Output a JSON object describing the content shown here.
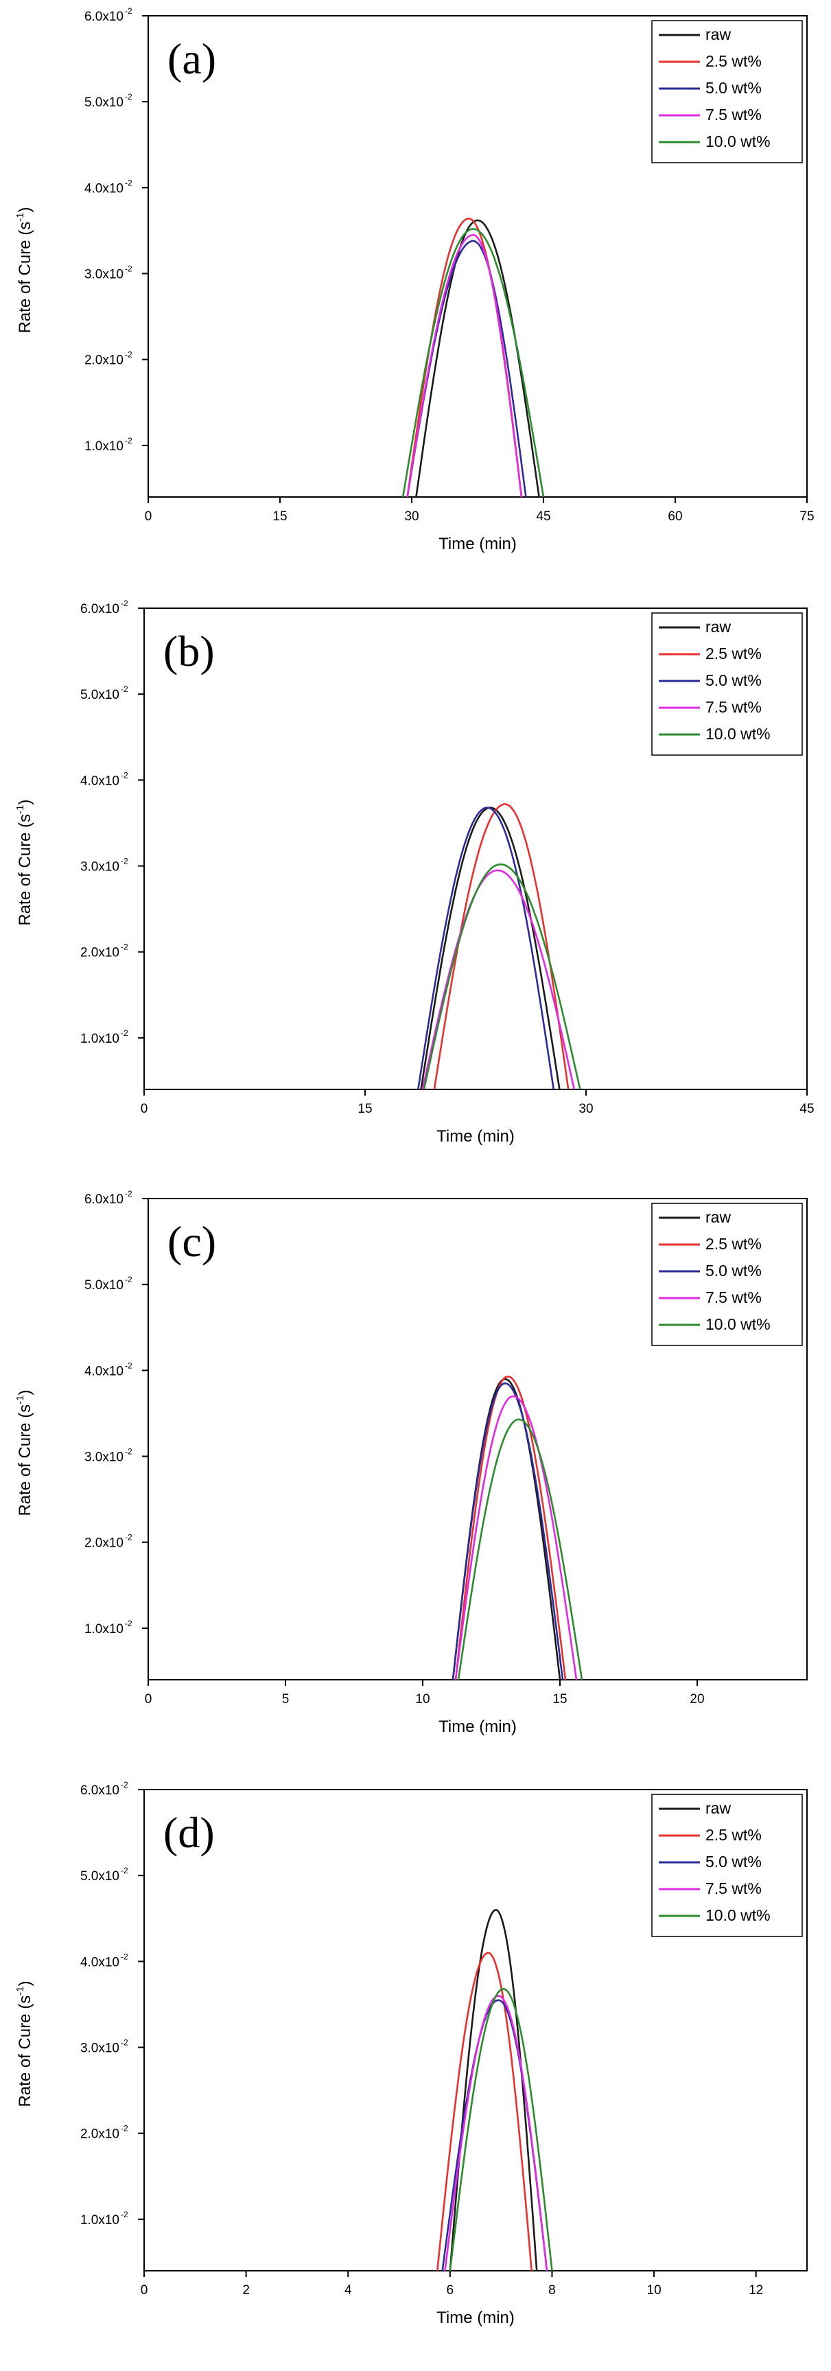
{
  "chart_data": [
    {
      "type": "line",
      "panel_label": "(a)",
      "xlabel": "Time (min)",
      "ylabel": "Rate of Cure (s",
      "ylabel_exp": "-1",
      "ylabel_suffix": ")",
      "xlim": [
        0,
        75
      ],
      "ylim": [
        0.004,
        0.06
      ],
      "xticks": [
        0,
        15,
        30,
        45,
        60,
        75
      ],
      "yticks": [
        {
          "value": 0.01,
          "mantissa": "1.0x10",
          "exp": "-2"
        },
        {
          "value": 0.02,
          "mantissa": "2.0x10",
          "exp": "-2"
        },
        {
          "value": 0.03,
          "mantissa": "3.0x10",
          "exp": "-2"
        },
        {
          "value": 0.04,
          "mantissa": "4.0x10",
          "exp": "-2"
        },
        {
          "value": 0.05,
          "mantissa": "5.0x10",
          "exp": "-2"
        },
        {
          "value": 0.06,
          "mantissa": "6.0x10",
          "exp": "-2"
        }
      ],
      "legend_position": "top-right",
      "series": [
        {
          "name": "raw",
          "color": "#1a1a1a",
          "start": 30.5,
          "peak_x": 37.5,
          "peak_y": 0.0362,
          "end": 44.5
        },
        {
          "name": "2.5 wt%",
          "color": "#e8322e",
          "start": 29.5,
          "peak_x": 36.5,
          "peak_y": 0.0364,
          "end": 42.5
        },
        {
          "name": "5.0 wt%",
          "color": "#2b2b9a",
          "start": 29.5,
          "peak_x": 37.0,
          "peak_y": 0.0338,
          "end": 43.0
        },
        {
          "name": "7.5 wt%",
          "color": "#e22ae2",
          "start": 29.5,
          "peak_x": 37.0,
          "peak_y": 0.0345,
          "end": 42.5
        },
        {
          "name": "10.0 wt%",
          "color": "#2d8a2d",
          "start": 29.0,
          "peak_x": 37.0,
          "peak_y": 0.0352,
          "end": 45.0
        }
      ]
    },
    {
      "type": "line",
      "panel_label": "(b)",
      "xlabel": "Time (min)",
      "ylabel": "Rate of Cure (s",
      "ylabel_exp": "-1",
      "ylabel_suffix": ")",
      "xlim": [
        0,
        45
      ],
      "ylim": [
        0.004,
        0.06
      ],
      "xticks": [
        0,
        15,
        30,
        45
      ],
      "yticks": [
        {
          "value": 0.01,
          "mantissa": "1.0x10",
          "exp": "-2"
        },
        {
          "value": 0.02,
          "mantissa": "2.0x10",
          "exp": "-2"
        },
        {
          "value": 0.03,
          "mantissa": "3.0x10",
          "exp": "-2"
        },
        {
          "value": 0.04,
          "mantissa": "4.0x10",
          "exp": "-2"
        },
        {
          "value": 0.05,
          "mantissa": "5.0x10",
          "exp": "-2"
        },
        {
          "value": 0.06,
          "mantissa": "6.0x10",
          "exp": "-2"
        }
      ],
      "legend_position": "top-right",
      "series": [
        {
          "name": "raw",
          "color": "#1a1a1a",
          "start": 18.8,
          "peak_x": 23.5,
          "peak_y": 0.0368,
          "end": 28.2
        },
        {
          "name": "2.5 wt%",
          "color": "#e8322e",
          "start": 19.7,
          "peak_x": 24.5,
          "peak_y": 0.0372,
          "end": 28.8
        },
        {
          "name": "5.0 wt%",
          "color": "#2b2b9a",
          "start": 18.6,
          "peak_x": 23.3,
          "peak_y": 0.0368,
          "end": 27.8
        },
        {
          "name": "7.5 wt%",
          "color": "#e22ae2",
          "start": 18.9,
          "peak_x": 24.0,
          "peak_y": 0.0295,
          "end": 29.2
        },
        {
          "name": "10.0 wt%",
          "color": "#2d8a2d",
          "start": 19.0,
          "peak_x": 24.2,
          "peak_y": 0.0302,
          "end": 29.6
        }
      ]
    },
    {
      "type": "line",
      "panel_label": "(c)",
      "xlabel": "Time (min)",
      "ylabel": "Rate of Cure (s",
      "ylabel_exp": "-1",
      "ylabel_suffix": ")",
      "xlim": [
        0,
        24
      ],
      "ylim": [
        0.004,
        0.06
      ],
      "xticks": [
        0,
        5,
        10,
        15,
        20
      ],
      "yticks": [
        {
          "value": 0.01,
          "mantissa": "1.0x10",
          "exp": "-2"
        },
        {
          "value": 0.02,
          "mantissa": "2.0x10",
          "exp": "-2"
        },
        {
          "value": 0.03,
          "mantissa": "3.0x10",
          "exp": "-2"
        },
        {
          "value": 0.04,
          "mantissa": "4.0x10",
          "exp": "-2"
        },
        {
          "value": 0.05,
          "mantissa": "5.0x10",
          "exp": "-2"
        },
        {
          "value": 0.06,
          "mantissa": "6.0x10",
          "exp": "-2"
        }
      ],
      "legend_position": "top-right",
      "series": [
        {
          "name": "raw",
          "color": "#1a1a1a",
          "start": 11.1,
          "peak_x": 13.0,
          "peak_y": 0.039,
          "end": 15.0
        },
        {
          "name": "2.5 wt%",
          "color": "#e8322e",
          "start": 11.2,
          "peak_x": 13.1,
          "peak_y": 0.0393,
          "end": 15.2
        },
        {
          "name": "5.0 wt%",
          "color": "#2b2b9a",
          "start": 11.1,
          "peak_x": 13.0,
          "peak_y": 0.0385,
          "end": 15.1
        },
        {
          "name": "7.5 wt%",
          "color": "#e22ae2",
          "start": 11.2,
          "peak_x": 13.3,
          "peak_y": 0.037,
          "end": 15.6
        },
        {
          "name": "10.0 wt%",
          "color": "#2d8a2d",
          "start": 11.3,
          "peak_x": 13.5,
          "peak_y": 0.0343,
          "end": 15.8
        }
      ]
    },
    {
      "type": "line",
      "panel_label": "(d)",
      "xlabel": "Time (min)",
      "ylabel": "Rate of Cure (s",
      "ylabel_exp": "-1",
      "ylabel_suffix": ")",
      "xlim": [
        0,
        13
      ],
      "ylim": [
        0.004,
        0.06
      ],
      "xticks": [
        0,
        2,
        4,
        6,
        8,
        10,
        12
      ],
      "yticks": [
        {
          "value": 0.01,
          "mantissa": "1.0x10",
          "exp": "-2"
        },
        {
          "value": 0.02,
          "mantissa": "2.0x10",
          "exp": "-2"
        },
        {
          "value": 0.03,
          "mantissa": "3.0x10",
          "exp": "-2"
        },
        {
          "value": 0.04,
          "mantissa": "4.0x10",
          "exp": "-2"
        },
        {
          "value": 0.05,
          "mantissa": "5.0x10",
          "exp": "-2"
        },
        {
          "value": 0.06,
          "mantissa": "6.0x10",
          "exp": "-2"
        }
      ],
      "legend_position": "top-right",
      "series": [
        {
          "name": "raw",
          "color": "#1a1a1a",
          "start": 6.0,
          "peak_x": 6.9,
          "peak_y": 0.046,
          "end": 7.7
        },
        {
          "name": "2.5 wt%",
          "color": "#e8322e",
          "start": 5.75,
          "peak_x": 6.75,
          "peak_y": 0.041,
          "end": 7.6
        },
        {
          "name": "5.0 wt%",
          "color": "#2b2b9a",
          "start": 5.85,
          "peak_x": 6.95,
          "peak_y": 0.0355,
          "end": 7.9
        },
        {
          "name": "7.5 wt%",
          "color": "#e22ae2",
          "start": 5.9,
          "peak_x": 6.95,
          "peak_y": 0.036,
          "end": 7.9
        },
        {
          "name": "10.0 wt%",
          "color": "#2d8a2d",
          "start": 6.0,
          "peak_x": 7.05,
          "peak_y": 0.0368,
          "end": 8.0
        }
      ]
    }
  ]
}
